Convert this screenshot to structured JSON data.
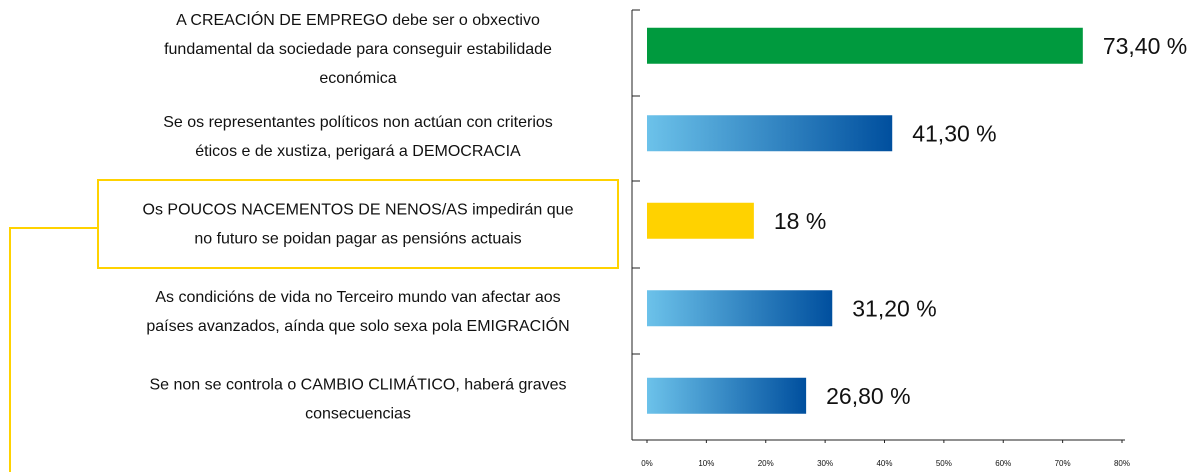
{
  "chart_data": {
    "type": "barh",
    "categories": [
      [
        "A CREACIÓN DE EMPREGO debe ser o obxectivo",
        "fundamental da sociedade para conseguir estabilidade",
        "económica"
      ],
      [
        "Se os representantes políticos non actúan con criterios",
        "éticos e de xustiza, perigará a DEMOCRACIA"
      ],
      [
        "Os POUCOS NACEMENTOS DE NENOS/AS impedirán que",
        "no futuro se poidan pagar as pensións actuais"
      ],
      [
        "As condicións de vida no Terceiro mundo van afectar aos",
        "países avanzados, aínda que solo sexa pola EMIGRACIÓN"
      ],
      [
        "Se non se controla o CAMBIO CLIMÁTICO, haberá graves",
        "consecuencias"
      ]
    ],
    "values": [
      73.4,
      41.3,
      18,
      31.2,
      26.8
    ],
    "value_labels": [
      "73,40 %",
      "41,30 %",
      "18 %",
      "31,20 %",
      "26,80 %"
    ],
    "colors": [
      "#009a3e",
      [
        "#6cc2ea",
        "#004f9e"
      ],
      "#ffd200",
      [
        "#6cc2ea",
        "#004f9e"
      ],
      [
        "#6cc2ea",
        "#004f9e"
      ]
    ],
    "xlim": [
      0,
      80
    ],
    "xticks": [
      {
        "value": 0,
        "label": "0%"
      },
      {
        "value": 10,
        "label": "10%"
      },
      {
        "value": 20,
        "label": "20%"
      },
      {
        "value": 30,
        "label": "30%"
      },
      {
        "value": 40,
        "label": "40%"
      },
      {
        "value": 50,
        "label": "50%"
      },
      {
        "value": 60,
        "label": "60%"
      },
      {
        "value": 70,
        "label": "70%"
      },
      {
        "value": 80,
        "label": "80%"
      }
    ]
  }
}
